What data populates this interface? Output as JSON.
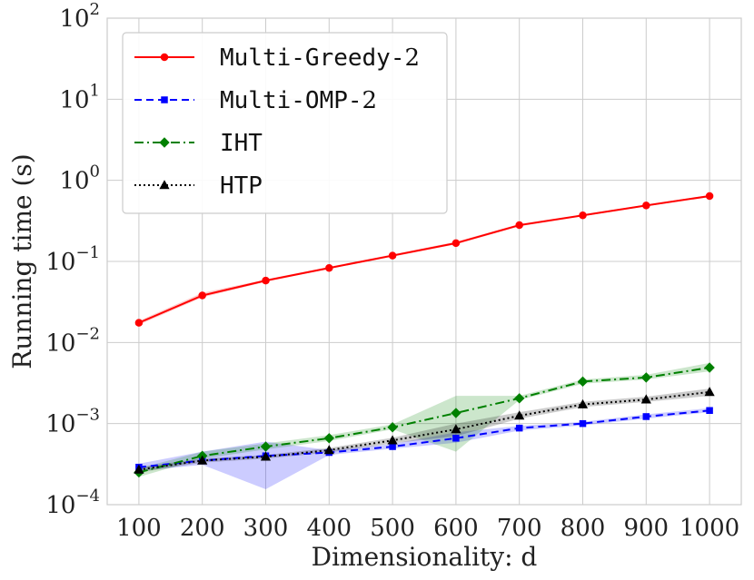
{
  "chart_data": {
    "type": "line",
    "title": "",
    "xlabel": "Dimensionality: d",
    "ylabel": "Running time (s)",
    "xscale": "linear",
    "yscale": "log",
    "xlim": [
      50,
      1050
    ],
    "ylim": [
      0.0001,
      100
    ],
    "grid": true,
    "legend_position": "top-left",
    "x": [
      100,
      200,
      300,
      400,
      500,
      600,
      700,
      800,
      900,
      1000
    ],
    "x_tick_labels": [
      "100",
      "200",
      "300",
      "400",
      "500",
      "600",
      "700",
      "800",
      "900",
      "1000"
    ],
    "y_ticks": [
      {
        "value": 0.0001,
        "base": "10",
        "exp": "−4"
      },
      {
        "value": 0.001,
        "base": "10",
        "exp": "−3"
      },
      {
        "value": 0.01,
        "base": "10",
        "exp": "−2"
      },
      {
        "value": 0.1,
        "base": "10",
        "exp": "−1"
      },
      {
        "value": 1,
        "base": "10",
        "exp": "0"
      },
      {
        "value": 10,
        "base": "10",
        "exp": "1"
      },
      {
        "value": 100,
        "base": "10",
        "exp": "2"
      }
    ],
    "series": [
      {
        "name": "Multi-Greedy-",
        "name_suffix": "2",
        "color": "#ff0000",
        "marker": "circle",
        "dash": "solid",
        "values": [
          0.0175,
          0.038,
          0.058,
          0.083,
          0.118,
          0.168,
          0.28,
          0.37,
          0.49,
          0.64
        ],
        "lower": [
          0.0165,
          0.036,
          0.056,
          0.081,
          0.114,
          0.162,
          0.27,
          0.36,
          0.48,
          0.62
        ],
        "upper": [
          0.0185,
          0.041,
          0.06,
          0.086,
          0.122,
          0.175,
          0.29,
          0.38,
          0.5,
          0.66
        ]
      },
      {
        "name": "Multi-OMP-",
        "name_suffix": "2",
        "color": "#0000ff",
        "marker": "square",
        "dash": "dashed",
        "values": [
          0.00029,
          0.00035,
          0.0004,
          0.00044,
          0.00052,
          0.00066,
          0.00088,
          0.001,
          0.00122,
          0.00145
        ],
        "lower": [
          0.00026,
          0.00031,
          0.000155,
          0.00041,
          0.00049,
          0.00058,
          0.00082,
          0.00095,
          0.00115,
          0.00138
        ],
        "upper": [
          0.00032,
          0.00045,
          0.0006,
          0.00047,
          0.00056,
          0.00078,
          0.00094,
          0.00105,
          0.0013,
          0.00155
        ]
      },
      {
        "name": "IHT",
        "name_suffix": "",
        "color": "#008000",
        "marker": "diamond",
        "dash": "dashdot",
        "values": [
          0.00025,
          0.0004,
          0.00052,
          0.00066,
          0.0009,
          0.00135,
          0.00205,
          0.0033,
          0.0037,
          0.0049
        ],
        "lower": [
          0.00022,
          0.00037,
          0.00048,
          0.00061,
          0.00085,
          0.00045,
          0.00195,
          0.0031,
          0.0035,
          0.0044
        ],
        "upper": [
          0.00028,
          0.00045,
          0.00057,
          0.00072,
          0.00098,
          0.0022,
          0.0022,
          0.0035,
          0.004,
          0.0056
        ]
      },
      {
        "name": "HTP",
        "name_suffix": "",
        "color": "#000000",
        "marker": "triangle",
        "dash": "dotted",
        "values": [
          0.00027,
          0.00035,
          0.00039,
          0.00047,
          0.00062,
          0.00085,
          0.00125,
          0.00172,
          0.00198,
          0.00245
        ],
        "lower": [
          0.00025,
          0.00033,
          0.00037,
          0.00044,
          0.00057,
          0.0007,
          0.00115,
          0.0016,
          0.00185,
          0.0022
        ],
        "upper": [
          0.00029,
          0.00037,
          0.00041,
          0.0005,
          0.00067,
          0.001,
          0.00138,
          0.00185,
          0.00215,
          0.0027
        ]
      }
    ]
  }
}
